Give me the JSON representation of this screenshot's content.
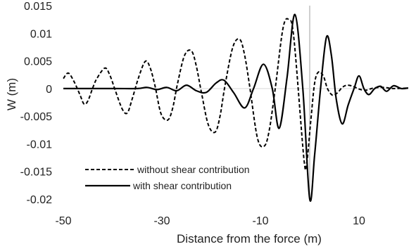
{
  "chart_data": {
    "type": "line",
    "title": "",
    "xlabel": "Distance from the force (m)",
    "ylabel": "W (m)",
    "xlim": [
      -50,
      20
    ],
    "ylim": [
      -0.02,
      0.015
    ],
    "x_ticks": [
      -50,
      -30,
      -10,
      10
    ],
    "x_tick_labels": [
      "-50",
      "-30",
      "-10",
      "10"
    ],
    "y_ticks": [
      0.015,
      0.01,
      0.005,
      0,
      -0.005,
      -0.01,
      -0.015,
      -0.02
    ],
    "y_tick_labels": [
      "0.015",
      "0.01",
      "0.005",
      "0",
      "-0.005",
      "-0.01",
      "-0.015",
      "-0.02"
    ],
    "grid": false,
    "legend_position": "bottom-left",
    "reference_line_x": 0,
    "series": [
      {
        "name": "without shear contribution",
        "style": "dashed",
        "color": "#000000",
        "x": [
          -50,
          -49.0,
          -47.8,
          -46.6,
          -45.8,
          -45.0,
          -44.0,
          -43.2,
          -41.6,
          -40.6,
          -39.4,
          -38.0,
          -37.0,
          -36.0,
          -34.8,
          -33.4,
          -32.4,
          -31.4,
          -30.2,
          -28.8,
          -27.8,
          -26.8,
          -25.4,
          -24.0,
          -23.0,
          -22.0,
          -20.6,
          -19.2,
          -18.2,
          -17.2,
          -15.6,
          -14.2,
          -13.2,
          -12.2,
          -10.6,
          -9.2,
          -8.2,
          -7.0,
          -5.4,
          -4.2,
          -3.2,
          -1.2,
          -0.6,
          0.2,
          1.0,
          1.8,
          2.8,
          3.6,
          4.6,
          5.6,
          6.6,
          7.6,
          8.8,
          10.0,
          11.4,
          13.0,
          15.0,
          17.0,
          20.0
        ],
        "values": [
          0.0018,
          0.0028,
          0.0012,
          -0.0012,
          -0.0028,
          -0.0022,
          0.0002,
          0.0018,
          0.0037,
          0.0025,
          -0.0005,
          -0.0038,
          -0.0044,
          -0.0018,
          0.0018,
          0.0049,
          0.0038,
          0.0005,
          -0.0045,
          -0.0057,
          -0.0035,
          0.001,
          0.006,
          0.0068,
          0.004,
          -0.0006,
          -0.0065,
          -0.0079,
          -0.005,
          0.0005,
          0.0075,
          0.0089,
          0.006,
          0.0005,
          -0.009,
          -0.0104,
          -0.0075,
          0.0,
          0.011,
          0.0124,
          0.009,
          -0.0125,
          -0.0134,
          -0.006,
          0.001,
          0.003,
          0.0022,
          0.0,
          -0.0012,
          -0.0008,
          0.0002,
          0.0006,
          0.0004,
          -0.0001,
          -0.0003,
          0.0001,
          0.0002,
          0.0,
          0.0001
        ]
      },
      {
        "name": "with shear contribution",
        "style": "solid",
        "color": "#000000",
        "x": [
          -50,
          -40,
          -35,
          -33.0,
          -31.0,
          -29.0,
          -27.0,
          -25.0,
          -23.0,
          -21.0,
          -19.0,
          -17.4,
          -15.4,
          -13.2,
          -11.4,
          -9.4,
          -7.6,
          -6.2,
          -4.6,
          -3.0,
          -1.4,
          0.0,
          1.0,
          2.2,
          3.4,
          4.4,
          5.4,
          6.6,
          7.8,
          9.0,
          10.0,
          11.0,
          12.0,
          13.2,
          14.4,
          15.6,
          17.0,
          18.6,
          20.0
        ],
        "values": [
          0.0,
          0.0,
          0.0,
          0.0002,
          -0.0002,
          0.0002,
          -0.0004,
          0.0006,
          -0.0004,
          -0.0007,
          0.001,
          0.0015,
          -0.0008,
          -0.0035,
          0.0,
          0.0044,
          0.0,
          -0.0072,
          0.002,
          0.0134,
          0.0,
          -0.02,
          -0.012,
          0.0,
          0.0093,
          0.006,
          -0.002,
          -0.0064,
          -0.003,
          0.0,
          0.0023,
          0.0,
          -0.0011,
          0.0,
          0.0004,
          -0.0005,
          0.0005,
          0.0,
          0.0001
        ]
      }
    ]
  }
}
